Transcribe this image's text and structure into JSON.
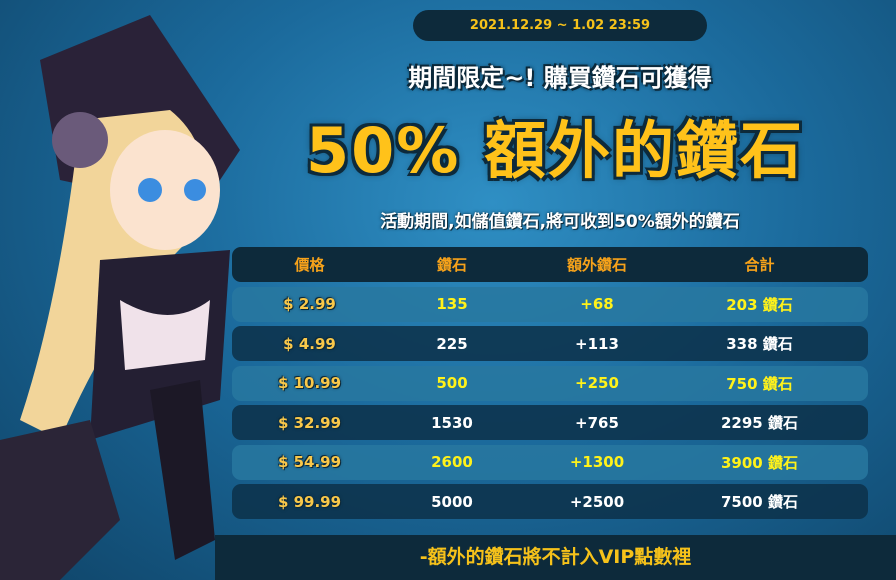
{
  "date_range": "2021.12.29 ~ 1.02 23:59",
  "headline": "期間限定~! 購買鑽石可獲得",
  "bonus_title": "50% 額外的鑽石",
  "description": "活動期間,如儲值鑽石,將可收到50%額外的鑽石",
  "table": {
    "headers": [
      "價格",
      "鑽石",
      "額外鑽石",
      "合計"
    ],
    "rows": [
      {
        "price": "$ 2.99",
        "diamonds": "135",
        "bonus": "+68",
        "total": "203 鑽石"
      },
      {
        "price": "$ 4.99",
        "diamonds": "225",
        "bonus": "+113",
        "total": "338 鑽石"
      },
      {
        "price": "$ 10.99",
        "diamonds": "500",
        "bonus": "+250",
        "total": "750 鑽石"
      },
      {
        "price": "$ 32.99",
        "diamonds": "1530",
        "bonus": "+765",
        "total": "2295 鑽石"
      },
      {
        "price": "$ 54.99",
        "diamonds": "2600",
        "bonus": "+1300",
        "total": "3900 鑽石"
      },
      {
        "price": "$ 99.99",
        "diamonds": "5000",
        "bonus": "+2500",
        "total": "7500 鑽石"
      }
    ]
  },
  "footer_note": "-額外的鑽石將不計入VIP點數裡",
  "colors": {
    "accent": "#f6c21a",
    "highlight": "#fff21a",
    "panel": "#0d2a3b"
  }
}
